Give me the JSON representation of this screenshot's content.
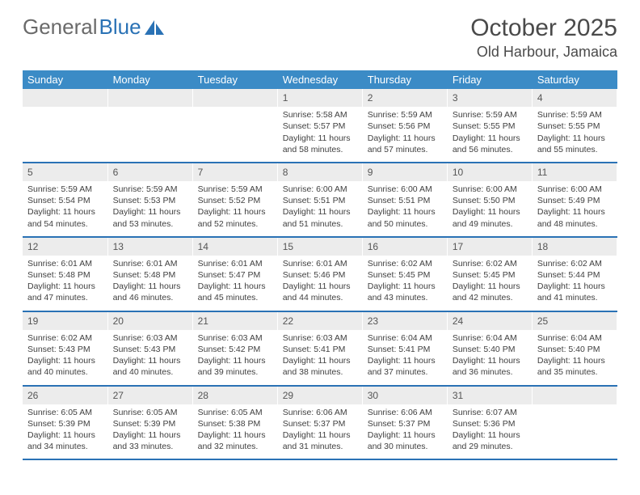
{
  "logo": {
    "text_grey": "General",
    "text_blue": "Blue"
  },
  "title": "October 2025",
  "location": "Old Harbour, Jamaica",
  "header_color": "#3b8bc6",
  "rule_color": "#2a72b5",
  "daynum_bg": "#ececec",
  "text_color": "#3f3f3f",
  "day_headers": [
    "Sunday",
    "Monday",
    "Tuesday",
    "Wednesday",
    "Thursday",
    "Friday",
    "Saturday"
  ],
  "weeks": [
    {
      "nums": [
        "",
        "",
        "",
        "1",
        "2",
        "3",
        "4"
      ],
      "details": [
        "",
        "",
        "",
        "Sunrise: 5:58 AM\nSunset: 5:57 PM\nDaylight: 11 hours and 58 minutes.",
        "Sunrise: 5:59 AM\nSunset: 5:56 PM\nDaylight: 11 hours and 57 minutes.",
        "Sunrise: 5:59 AM\nSunset: 5:55 PM\nDaylight: 11 hours and 56 minutes.",
        "Sunrise: 5:59 AM\nSunset: 5:55 PM\nDaylight: 11 hours and 55 minutes."
      ]
    },
    {
      "nums": [
        "5",
        "6",
        "7",
        "8",
        "9",
        "10",
        "11"
      ],
      "details": [
        "Sunrise: 5:59 AM\nSunset: 5:54 PM\nDaylight: 11 hours and 54 minutes.",
        "Sunrise: 5:59 AM\nSunset: 5:53 PM\nDaylight: 11 hours and 53 minutes.",
        "Sunrise: 5:59 AM\nSunset: 5:52 PM\nDaylight: 11 hours and 52 minutes.",
        "Sunrise: 6:00 AM\nSunset: 5:51 PM\nDaylight: 11 hours and 51 minutes.",
        "Sunrise: 6:00 AM\nSunset: 5:51 PM\nDaylight: 11 hours and 50 minutes.",
        "Sunrise: 6:00 AM\nSunset: 5:50 PM\nDaylight: 11 hours and 49 minutes.",
        "Sunrise: 6:00 AM\nSunset: 5:49 PM\nDaylight: 11 hours and 48 minutes."
      ]
    },
    {
      "nums": [
        "12",
        "13",
        "14",
        "15",
        "16",
        "17",
        "18"
      ],
      "details": [
        "Sunrise: 6:01 AM\nSunset: 5:48 PM\nDaylight: 11 hours and 47 minutes.",
        "Sunrise: 6:01 AM\nSunset: 5:48 PM\nDaylight: 11 hours and 46 minutes.",
        "Sunrise: 6:01 AM\nSunset: 5:47 PM\nDaylight: 11 hours and 45 minutes.",
        "Sunrise: 6:01 AM\nSunset: 5:46 PM\nDaylight: 11 hours and 44 minutes.",
        "Sunrise: 6:02 AM\nSunset: 5:45 PM\nDaylight: 11 hours and 43 minutes.",
        "Sunrise: 6:02 AM\nSunset: 5:45 PM\nDaylight: 11 hours and 42 minutes.",
        "Sunrise: 6:02 AM\nSunset: 5:44 PM\nDaylight: 11 hours and 41 minutes."
      ]
    },
    {
      "nums": [
        "19",
        "20",
        "21",
        "22",
        "23",
        "24",
        "25"
      ],
      "details": [
        "Sunrise: 6:02 AM\nSunset: 5:43 PM\nDaylight: 11 hours and 40 minutes.",
        "Sunrise: 6:03 AM\nSunset: 5:43 PM\nDaylight: 11 hours and 40 minutes.",
        "Sunrise: 6:03 AM\nSunset: 5:42 PM\nDaylight: 11 hours and 39 minutes.",
        "Sunrise: 6:03 AM\nSunset: 5:41 PM\nDaylight: 11 hours and 38 minutes.",
        "Sunrise: 6:04 AM\nSunset: 5:41 PM\nDaylight: 11 hours and 37 minutes.",
        "Sunrise: 6:04 AM\nSunset: 5:40 PM\nDaylight: 11 hours and 36 minutes.",
        "Sunrise: 6:04 AM\nSunset: 5:40 PM\nDaylight: 11 hours and 35 minutes."
      ]
    },
    {
      "nums": [
        "26",
        "27",
        "28",
        "29",
        "30",
        "31",
        ""
      ],
      "details": [
        "Sunrise: 6:05 AM\nSunset: 5:39 PM\nDaylight: 11 hours and 34 minutes.",
        "Sunrise: 6:05 AM\nSunset: 5:39 PM\nDaylight: 11 hours and 33 minutes.",
        "Sunrise: 6:05 AM\nSunset: 5:38 PM\nDaylight: 11 hours and 32 minutes.",
        "Sunrise: 6:06 AM\nSunset: 5:37 PM\nDaylight: 11 hours and 31 minutes.",
        "Sunrise: 6:06 AM\nSunset: 5:37 PM\nDaylight: 11 hours and 30 minutes.",
        "Sunrise: 6:07 AM\nSunset: 5:36 PM\nDaylight: 11 hours and 29 minutes.",
        ""
      ]
    }
  ]
}
